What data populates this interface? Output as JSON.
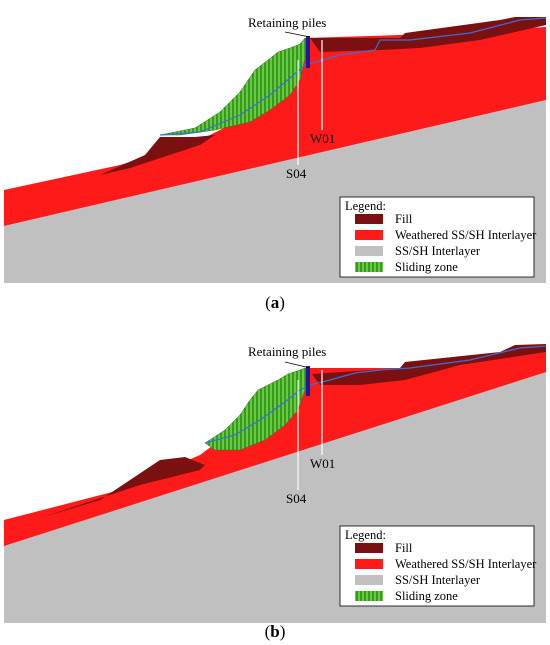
{
  "panels": [
    {
      "id": "a",
      "caption_open": "(",
      "caption_letter": "a",
      "caption_close": ")",
      "pile_label": "Retaining piles",
      "borehole_labels": [
        "W01",
        "S04"
      ],
      "legend": {
        "title": "Legend:",
        "items": [
          {
            "label": "Fill",
            "color": "#7b1010"
          },
          {
            "label": "Weathered SS/SH Interlayer",
            "color": "#ff1a1a"
          },
          {
            "label": "SS/SH Interlayer",
            "color": "#c0c0c0"
          },
          {
            "label": "Sliding zone",
            "color": "#5fcf3a"
          }
        ]
      }
    },
    {
      "id": "b",
      "caption_open": "(",
      "caption_letter": "b",
      "caption_close": ")",
      "pile_label": "Retaining piles",
      "borehole_labels": [
        "W01",
        "S04"
      ],
      "legend": {
        "title": "Legend:",
        "items": [
          {
            "label": "Fill",
            "color": "#7b1010"
          },
          {
            "label": "Weathered SS/SH Interlayer",
            "color": "#ff1a1a"
          },
          {
            "label": "SS/SH Interlayer",
            "color": "#c0c0c0"
          },
          {
            "label": "Sliding zone",
            "color": "#5fcf3a"
          }
        ]
      }
    }
  ],
  "colors": {
    "fill": "#7b1010",
    "weathered": "#ff1a1a",
    "bedrock": "#c0c0c0",
    "sliding": "#5fcf3a",
    "water_line": "#3b6fd6",
    "pile": "#1a1aa0"
  }
}
